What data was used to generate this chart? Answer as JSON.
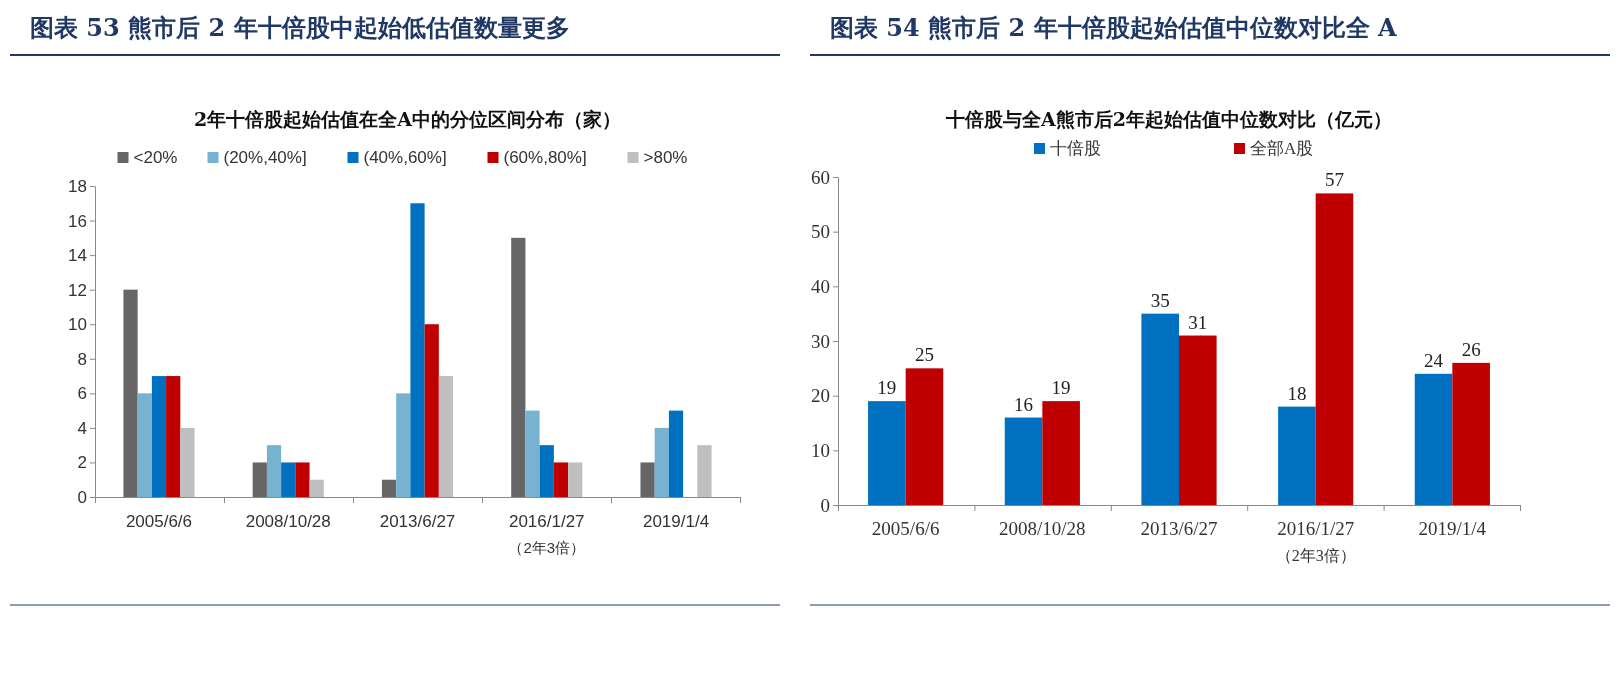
{
  "chart_data": [
    {
      "type": "bar",
      "title": "图表 53 熊市后 2 年十倍股中起始低估值数量更多",
      "subtitle": "2年十倍股起始估值在全A中的分位区间分布（家）",
      "categories": [
        "2005/6/6",
        "2008/10/28",
        "2013/6/27",
        "2016/1/27\n（2年3倍）",
        "2019/1/4"
      ],
      "series": [
        {
          "name": "<20%",
          "color": "#666666",
          "values": [
            12,
            2,
            1,
            15,
            2
          ]
        },
        {
          "name": "(20%,40%]",
          "color": "#77b3d0",
          "values": [
            6,
            3,
            6,
            5,
            4
          ]
        },
        {
          "name": "(40%,60%]",
          "color": "#0070c0",
          "values": [
            7,
            2,
            17,
            3,
            5
          ]
        },
        {
          "name": "(60%,80%]",
          "color": "#c00000",
          "values": [
            7,
            2,
            10,
            2,
            0
          ]
        },
        {
          "name": ">80%",
          "color": "#bfbfbf",
          "values": [
            4,
            1,
            7,
            2,
            3
          ]
        }
      ],
      "ylim": [
        0,
        18
      ],
      "yticks": [
        0,
        2,
        4,
        6,
        8,
        10,
        12,
        14,
        16,
        18
      ],
      "legend": "top",
      "grid": false
    },
    {
      "type": "bar",
      "title": "图表 54 熊市后 2 年十倍股起始估值中位数对比全 A",
      "subtitle": "十倍股与全A熊市后2年起始估值中位数对比（亿元）",
      "categories": [
        "2005/6/6",
        "2008/10/28",
        "2013/6/27",
        "2016/1/27\n（2年3倍）",
        "2019/1/4"
      ],
      "series": [
        {
          "name": "十倍股",
          "color": "#0070c0",
          "values": [
            19,
            16,
            35,
            18,
            24
          ]
        },
        {
          "name": "全部A股",
          "color": "#c00000",
          "values": [
            25,
            19,
            31,
            57,
            26
          ]
        }
      ],
      "ylim": [
        0,
        60
      ],
      "yticks": [
        0,
        10,
        20,
        30,
        40,
        50,
        60
      ],
      "legend": "top",
      "grid": false,
      "data_labels": true
    }
  ]
}
